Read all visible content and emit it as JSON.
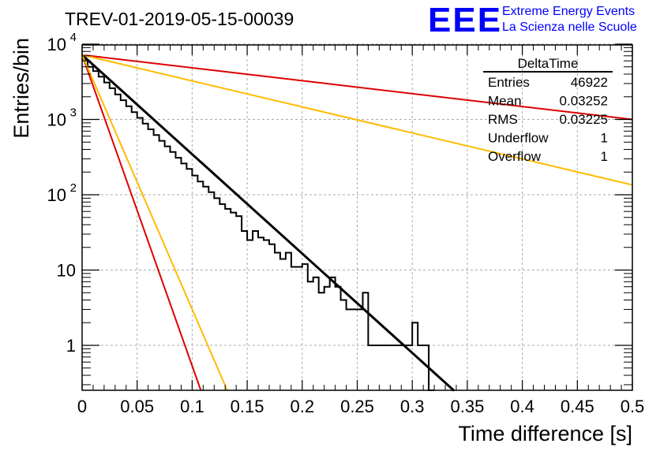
{
  "header": {
    "title": "TREV-01-2019-05-15-00039",
    "logo_text": "EEE",
    "logo_line1": "Extreme Energy Events",
    "logo_line2": "La Scienza nelle Scuole"
  },
  "stats_box": {
    "title": "DeltaTime",
    "rows": [
      {
        "label": "Entries",
        "value": "46922"
      },
      {
        "label": "Mean",
        "value": "0.03252"
      },
      {
        "label": "RMS",
        "value": "0.03225"
      },
      {
        "label": "Underflow",
        "value": "1"
      },
      {
        "label": "Overflow",
        "value": "1"
      }
    ]
  },
  "chart_data": {
    "type": "line",
    "title": "TREV-01-2019-05-15-00039",
    "xlabel": "Time difference [s]",
    "ylabel": "Entries/bin",
    "xlim": [
      0,
      0.5
    ],
    "ylim": [
      0.25,
      12000
    ],
    "y_scale": "log",
    "grid": true,
    "x_ticks": [
      {
        "value": 0,
        "label": "0"
      },
      {
        "value": 0.05,
        "label": "0.05"
      },
      {
        "value": 0.1,
        "label": "0.1"
      },
      {
        "value": 0.15,
        "label": "0.15"
      },
      {
        "value": 0.2,
        "label": "0.2"
      },
      {
        "value": 0.25,
        "label": "0.25"
      },
      {
        "value": 0.3,
        "label": "0.3"
      },
      {
        "value": 0.35,
        "label": "0.35"
      },
      {
        "value": 0.4,
        "label": "0.4"
      },
      {
        "value": 0.45,
        "label": "0.45"
      },
      {
        "value": 0.5,
        "label": "0.5"
      }
    ],
    "y_ticks": [
      {
        "value": 1,
        "base": "1",
        "exp": ""
      },
      {
        "value": 10,
        "base": "10",
        "exp": ""
      },
      {
        "value": 100,
        "base": "10",
        "exp": "2"
      },
      {
        "value": 1000,
        "base": "10",
        "exp": "3"
      },
      {
        "value": 10000,
        "base": "10",
        "exp": "4"
      }
    ],
    "series": [
      {
        "kind": "histogram",
        "color": "#000000",
        "bin_width": 0.005,
        "x0": 0,
        "values": [
          6200,
          5000,
          4400,
          3700,
          3100,
          2600,
          2150,
          1800,
          1500,
          1250,
          1050,
          880,
          740,
          620,
          520,
          440,
          370,
          310,
          260,
          220,
          180,
          150,
          128,
          108,
          90,
          75,
          65,
          58,
          52,
          33,
          25,
          33,
          27,
          25,
          22,
          17,
          14,
          17,
          11,
          11,
          12,
          7,
          8,
          5,
          6,
          8,
          6,
          4,
          3,
          3,
          3,
          5,
          1,
          1,
          1,
          1,
          1,
          1,
          1,
          1,
          2,
          1,
          1,
          0
        ]
      },
      {
        "kind": "fit",
        "color": "#000000",
        "y0": 7200,
        "x_end": 0.338,
        "y_end": 0.25
      },
      {
        "kind": "fit",
        "color": "#dd0000",
        "y0": 7200,
        "x_end": 0.5,
        "y_end": 1000
      },
      {
        "kind": "fit",
        "color": "#ffbb00",
        "y0": 7200,
        "x_end": 0.5,
        "y_end": 135
      },
      {
        "kind": "fit",
        "color": "#dd0000",
        "y0": 7200,
        "x_end": 0.108,
        "y_end": 0.25
      },
      {
        "kind": "fit",
        "color": "#ffbb00",
        "y0": 7200,
        "x_end": 0.132,
        "y_end": 0.25
      }
    ]
  }
}
